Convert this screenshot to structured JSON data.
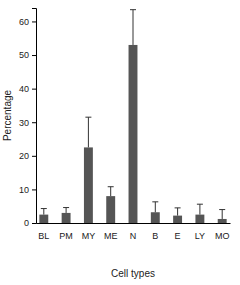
{
  "chart_data": {
    "type": "bar",
    "x_label": "Cell types",
    "y_label": "Percentage",
    "categories": [
      "BL",
      "PM",
      "MY",
      "ME",
      "N",
      "B",
      "E",
      "LY",
      "MO"
    ],
    "values": [
      2.5,
      3.0,
      22.5,
      8.0,
      53.0,
      3.2,
      2.2,
      2.5,
      1.2
    ],
    "errors": [
      1.8,
      1.6,
      9.0,
      2.8,
      10.5,
      3.1,
      2.3,
      3.1,
      2.8
    ],
    "color": "#555555",
    "ylim": [
      0,
      64
    ],
    "yticks": [
      0,
      10,
      20,
      30,
      40,
      50,
      60
    ],
    "grid": false
  }
}
